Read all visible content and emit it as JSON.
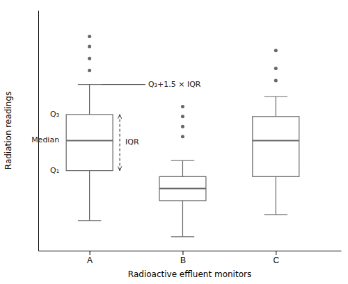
{
  "chart_data": {
    "type": "box",
    "xlabel": "Radioactive effluent monitors",
    "ylabel": "Radiation readings",
    "categories": [
      "A",
      "B",
      "C"
    ],
    "boxes": [
      {
        "q1": 3.5,
        "median": 5.0,
        "q3": 6.3,
        "whisker_low": 1.0,
        "whisker_high": 7.8,
        "fliers": [
          8.5,
          9.1,
          9.7,
          10.2
        ]
      },
      {
        "q1": 2.0,
        "median": 2.6,
        "q3": 3.2,
        "whisker_low": 0.2,
        "whisker_high": 4.0,
        "fliers": [
          5.2,
          5.7,
          6.2,
          6.7
        ]
      },
      {
        "q1": 3.2,
        "median": 5.0,
        "q3": 6.2,
        "whisker_low": 1.3,
        "whisker_high": 7.2,
        "fliers": [
          8.0,
          8.6,
          9.5
        ]
      }
    ],
    "annotations": {
      "q3": "Q₃",
      "median": "Median",
      "q1": "Q₁",
      "iqr": "IQR",
      "whisker_high": "Q₃+1.5 × IQR"
    },
    "color": "#666666",
    "ylim": [
      -0.5,
      11.5
    ],
    "yticks": [],
    "tick_labels": "x",
    "grid": false
  }
}
